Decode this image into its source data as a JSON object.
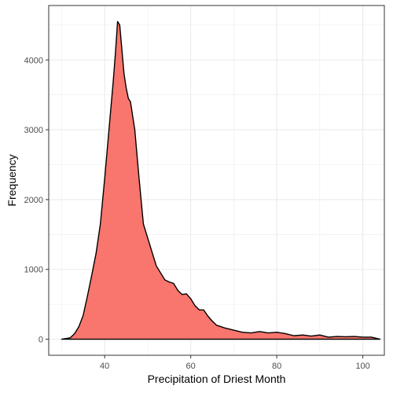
{
  "chart_data": {
    "type": "area",
    "xlabel": "Precipitation of Driest Month",
    "ylabel": "Frequency",
    "xlim": [
      27,
      105
    ],
    "ylim": [
      -230,
      4780
    ],
    "x_ticks": [
      40,
      60,
      80,
      100
    ],
    "y_ticks": [
      0,
      1000,
      2000,
      3000,
      4000
    ],
    "x_tick_labels": [
      "40",
      "60",
      "80",
      "100"
    ],
    "y_tick_labels": [
      "0",
      "1000",
      "2000",
      "3000",
      "4000"
    ],
    "grid": true,
    "legend": "none",
    "colors": {
      "fill": "#F8766D",
      "line": "#000000",
      "grid": "#ebebeb",
      "panel_border": "#333333"
    },
    "series": [
      {
        "x": [
          30,
          32,
          33,
          34,
          35,
          36,
          37,
          38,
          39,
          40,
          41,
          42,
          42.5,
          43,
          43.5,
          44,
          44.5,
          45,
          45.5,
          46,
          47,
          48,
          49,
          50,
          51,
          52,
          53,
          54,
          55,
          56,
          57,
          58,
          59,
          60,
          61,
          62,
          63,
          64,
          65,
          66,
          67,
          68,
          70,
          72,
          74,
          76,
          78,
          80,
          82,
          84,
          86,
          88,
          90,
          92,
          94,
          96,
          98,
          100,
          102,
          104
        ],
        "y": [
          0,
          20,
          80,
          180,
          340,
          620,
          920,
          1230,
          1650,
          2300,
          3000,
          3700,
          4100,
          4550,
          4500,
          4150,
          3800,
          3600,
          3450,
          3400,
          3000,
          2300,
          1650,
          1450,
          1250,
          1050,
          950,
          850,
          820,
          800,
          700,
          640,
          650,
          580,
          480,
          420,
          420,
          330,
          260,
          200,
          180,
          160,
          130,
          100,
          90,
          110,
          90,
          100,
          80,
          50,
          60,
          45,
          60,
          30,
          40,
          35,
          40,
          30,
          30,
          0
        ]
      }
    ]
  }
}
